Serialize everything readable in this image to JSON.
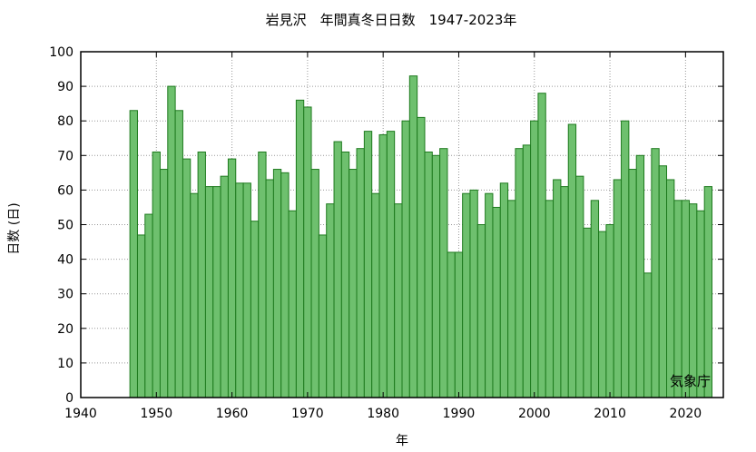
{
  "chart_data": {
    "type": "bar",
    "title": "岩見沢　年間真冬日日数　1947-2023年",
    "xlabel": "年",
    "ylabel": "日数 (日)",
    "source_label": "気象庁",
    "xlim": [
      1940,
      2025
    ],
    "ylim": [
      0,
      100
    ],
    "x_ticks": [
      1940,
      1950,
      1960,
      1970,
      1980,
      1990,
      2000,
      2010,
      2020
    ],
    "y_ticks": [
      0,
      10,
      20,
      30,
      40,
      50,
      60,
      70,
      80,
      90,
      100
    ],
    "grid": true,
    "bar_color": "#6ec06e",
    "bar_edge_color": "#1e7a1e",
    "x": [
      1947,
      1948,
      1949,
      1950,
      1951,
      1952,
      1953,
      1954,
      1955,
      1956,
      1957,
      1958,
      1959,
      1960,
      1961,
      1962,
      1963,
      1964,
      1965,
      1966,
      1967,
      1968,
      1969,
      1970,
      1971,
      1972,
      1973,
      1974,
      1975,
      1976,
      1977,
      1978,
      1979,
      1980,
      1981,
      1982,
      1983,
      1984,
      1985,
      1986,
      1987,
      1988,
      1989,
      1990,
      1991,
      1992,
      1993,
      1994,
      1995,
      1996,
      1997,
      1998,
      1999,
      2000,
      2001,
      2002,
      2003,
      2004,
      2005,
      2006,
      2007,
      2008,
      2009,
      2010,
      2011,
      2012,
      2013,
      2014,
      2015,
      2016,
      2017,
      2018,
      2019,
      2020,
      2021,
      2022,
      2023
    ],
    "values": [
      83,
      47,
      53,
      71,
      66,
      90,
      83,
      69,
      59,
      71,
      61,
      61,
      64,
      69,
      62,
      62,
      51,
      71,
      63,
      66,
      65,
      54,
      86,
      84,
      66,
      47,
      56,
      74,
      71,
      66,
      72,
      77,
      59,
      76,
      77,
      56,
      80,
      93,
      81,
      71,
      70,
      72,
      42,
      42,
      59,
      60,
      50,
      59,
      55,
      62,
      57,
      72,
      73,
      80,
      88,
      57,
      63,
      61,
      79,
      64,
      49,
      57,
      48,
      50,
      63,
      80,
      66,
      70,
      36,
      72,
      67,
      63,
      57,
      57,
      56,
      54,
      61
    ]
  }
}
